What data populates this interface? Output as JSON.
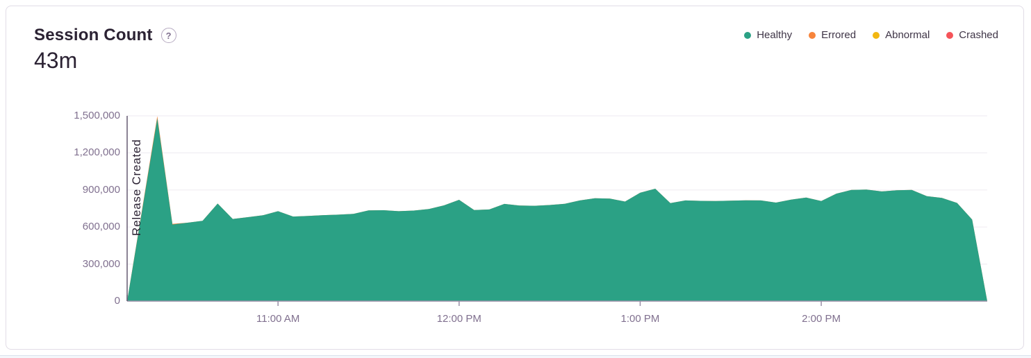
{
  "card": {
    "title": "Session Count",
    "help_icon": "?",
    "value": "43m"
  },
  "legend": {
    "items": [
      {
        "label": "Healthy",
        "color": "#2BA185"
      },
      {
        "label": "Errored",
        "color": "#F7843B"
      },
      {
        "label": "Abnormal",
        "color": "#F2B712"
      },
      {
        "label": "Crashed",
        "color": "#F55459"
      }
    ]
  },
  "chart_data": {
    "type": "area",
    "stacked": true,
    "title": "Session Count",
    "xlabel": "",
    "ylabel": "",
    "ylim": [
      0,
      1500000
    ],
    "grid": true,
    "legend_position": "top-right",
    "x_start": "10:10 AM",
    "x_end": "2:55 PM",
    "x_step_minutes": 5,
    "x_minutes": [
      0,
      5,
      10,
      15,
      20,
      25,
      30,
      35,
      40,
      45,
      50,
      55,
      60,
      65,
      70,
      75,
      80,
      85,
      90,
      95,
      100,
      105,
      110,
      115,
      120,
      125,
      130,
      135,
      140,
      145,
      150,
      155,
      160,
      165,
      170,
      175,
      180,
      185,
      190,
      195,
      200,
      205,
      210,
      215,
      220,
      225,
      230,
      235,
      240,
      245,
      250,
      255,
      260,
      265,
      270,
      275,
      280,
      285
    ],
    "series": [
      {
        "name": "Healthy",
        "color": "#2BA185",
        "values": [
          0,
          740000,
          1480000,
          620000,
          635000,
          650000,
          790000,
          665000,
          680000,
          695000,
          728000,
          685000,
          690000,
          696000,
          700000,
          707000,
          734000,
          736000,
          728000,
          733000,
          746000,
          775000,
          820000,
          737000,
          742000,
          787000,
          774000,
          772000,
          778000,
          788000,
          815000,
          833000,
          830000,
          806000,
          878000,
          910000,
          793000,
          815000,
          812000,
          810000,
          813000,
          816000,
          815000,
          798000,
          822000,
          838000,
          810000,
          870000,
          900000,
          903000,
          888000,
          898000,
          900000,
          850000,
          836000,
          795000,
          660000,
          0
        ]
      },
      {
        "name": "Errored",
        "color": "#F7843B",
        "values": [
          0,
          10000,
          18000,
          6000,
          0,
          0,
          0,
          0,
          0,
          0,
          0,
          0,
          0,
          0,
          0,
          0,
          0,
          0,
          0,
          0,
          0,
          0,
          0,
          0,
          0,
          0,
          0,
          0,
          0,
          0,
          0,
          0,
          0,
          0,
          0,
          0,
          0,
          0,
          0,
          0,
          0,
          0,
          0,
          0,
          0,
          0,
          0,
          0,
          0,
          0,
          0,
          0,
          0,
          0,
          0,
          0,
          0,
          0
        ]
      }
    ],
    "xticks": [
      {
        "minute": 50,
        "label": "11:00 AM"
      },
      {
        "minute": 110,
        "label": "12:00 PM"
      },
      {
        "minute": 170,
        "label": "1:00 PM"
      },
      {
        "minute": 230,
        "label": "2:00 PM"
      }
    ],
    "yticks": [
      {
        "value": 0,
        "label": "0"
      },
      {
        "value": 300000,
        "label": "300,000"
      },
      {
        "value": 600000,
        "label": "600,000"
      },
      {
        "value": 900000,
        "label": "900,000"
      },
      {
        "value": 1200000,
        "label": "1,200,000"
      },
      {
        "value": 1500000,
        "label": "1,500,000"
      }
    ],
    "annotations": [
      {
        "type": "vline",
        "x_minute": 0,
        "label": "Release Created"
      }
    ]
  },
  "colors": {
    "axis_line": "#998FA7",
    "grid_line": "#F0EDF3",
    "tick_label": "#80708F",
    "title_text": "#2B2233",
    "release_line": "#655A72",
    "card_border": "#E1DCE6"
  }
}
